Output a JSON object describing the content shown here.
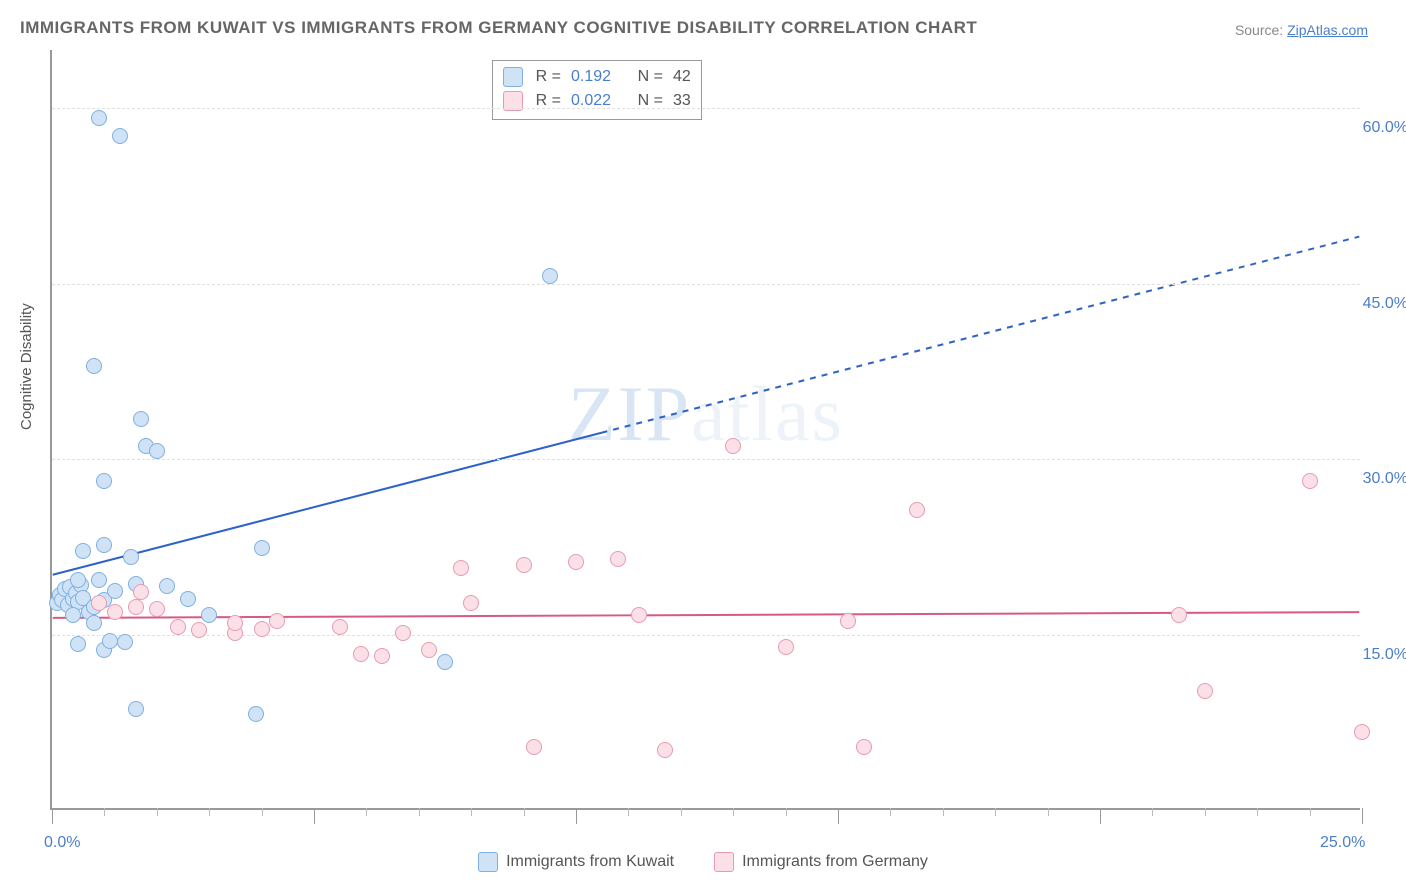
{
  "title": "IMMIGRANTS FROM KUWAIT VS IMMIGRANTS FROM GERMANY COGNITIVE DISABILITY CORRELATION CHART",
  "source": {
    "label": "Source:",
    "site": "ZipAtlas.com"
  },
  "yAxisLabel": "Cognitive Disability",
  "watermark": {
    "a": "ZIP",
    "b": "atlas"
  },
  "chart": {
    "type": "scatter",
    "background": "#ffffff",
    "grid_color": "#e0e0e0",
    "axis_color": "#999999",
    "tick_label_color": "#4a7fc9",
    "xlim": [
      0,
      25
    ],
    "ylim": [
      0,
      65
    ],
    "yticks": [
      15,
      30,
      45,
      60
    ],
    "ylabels": [
      "15.0%",
      "30.0%",
      "45.0%",
      "60.0%"
    ],
    "x_major": [
      0,
      5,
      10,
      15,
      20,
      25
    ],
    "x_minor_step": 1,
    "xlabels": {
      "min": "0.0%",
      "max": "25.0%"
    },
    "marker_radius": 8,
    "series": [
      {
        "key": "kuwait",
        "legend": "Immigrants from Kuwait",
        "fill": "#cfe2f6",
        "stroke": "#7fb0e0",
        "R": "0.192",
        "N": "42",
        "trend": {
          "x1": 0,
          "y1": 20,
          "x2": 25,
          "y2": 49,
          "solid_until_x": 10.5,
          "color": "#2e62c9",
          "width": 2
        },
        "pts": [
          [
            0.1,
            17.5
          ],
          [
            0.15,
            18.2
          ],
          [
            0.2,
            17.8
          ],
          [
            0.25,
            18.7
          ],
          [
            0.3,
            17.4
          ],
          [
            0.35,
            18.9
          ],
          [
            0.4,
            17.9
          ],
          [
            0.45,
            18.4
          ],
          [
            0.5,
            17.6
          ],
          [
            0.55,
            19.1
          ],
          [
            0.6,
            18.0
          ],
          [
            0.4,
            16.5
          ],
          [
            0.7,
            16.8
          ],
          [
            0.8,
            17.2
          ],
          [
            0.9,
            19.5
          ],
          [
            1.0,
            17.8
          ],
          [
            1.0,
            13.5
          ],
          [
            0.5,
            14.0
          ],
          [
            1.1,
            14.3
          ],
          [
            1.4,
            14.2
          ],
          [
            0.8,
            15.8
          ],
          [
            1.2,
            18.6
          ],
          [
            1.5,
            21.5
          ],
          [
            0.6,
            22.0
          ],
          [
            1.0,
            22.5
          ],
          [
            1.6,
            19.2
          ],
          [
            2.2,
            19.0
          ],
          [
            1.0,
            28.0
          ],
          [
            1.8,
            31.0
          ],
          [
            2.0,
            30.5
          ],
          [
            1.7,
            33.3
          ],
          [
            0.8,
            37.8
          ],
          [
            0.9,
            59.0
          ],
          [
            1.3,
            57.5
          ],
          [
            3.9,
            8.0
          ],
          [
            4.0,
            22.2
          ],
          [
            1.6,
            8.5
          ],
          [
            2.6,
            17.9
          ],
          [
            0.5,
            19.5
          ],
          [
            7.5,
            12.5
          ],
          [
            9.5,
            45.5
          ],
          [
            3.0,
            16.5
          ]
        ]
      },
      {
        "key": "germany",
        "legend": "Immigrants from Germany",
        "fill": "#fbe0e7",
        "stroke": "#e89ab0",
        "R": "0.022",
        "N": "33",
        "trend": {
          "x1": 0,
          "y1": 16.3,
          "x2": 25,
          "y2": 16.8,
          "solid_until_x": 25,
          "color": "#d65a84",
          "width": 2
        },
        "pts": [
          [
            0.9,
            17.5
          ],
          [
            1.2,
            16.8
          ],
          [
            1.6,
            17.2
          ],
          [
            1.7,
            18.5
          ],
          [
            2.0,
            17.0
          ],
          [
            2.4,
            15.5
          ],
          [
            2.8,
            15.2
          ],
          [
            3.5,
            15.0
          ],
          [
            3.5,
            15.8
          ],
          [
            4.0,
            15.3
          ],
          [
            4.3,
            16.0
          ],
          [
            5.5,
            15.5
          ],
          [
            5.9,
            13.2
          ],
          [
            6.3,
            13.0
          ],
          [
            6.7,
            15.0
          ],
          [
            7.2,
            13.5
          ],
          [
            7.8,
            20.5
          ],
          [
            8.0,
            17.5
          ],
          [
            9.0,
            20.8
          ],
          [
            9.2,
            5.2
          ],
          [
            10.0,
            21.0
          ],
          [
            10.8,
            21.3
          ],
          [
            11.2,
            16.5
          ],
          [
            11.7,
            5.0
          ],
          [
            13.0,
            31.0
          ],
          [
            14.0,
            13.8
          ],
          [
            15.2,
            16.0
          ],
          [
            15.5,
            5.2
          ],
          [
            16.5,
            25.5
          ],
          [
            21.5,
            16.5
          ],
          [
            22.0,
            10.0
          ],
          [
            24.0,
            28.0
          ],
          [
            25.0,
            6.5
          ]
        ]
      }
    ]
  },
  "statsLabels": {
    "R": "R =",
    "N": "N ="
  }
}
